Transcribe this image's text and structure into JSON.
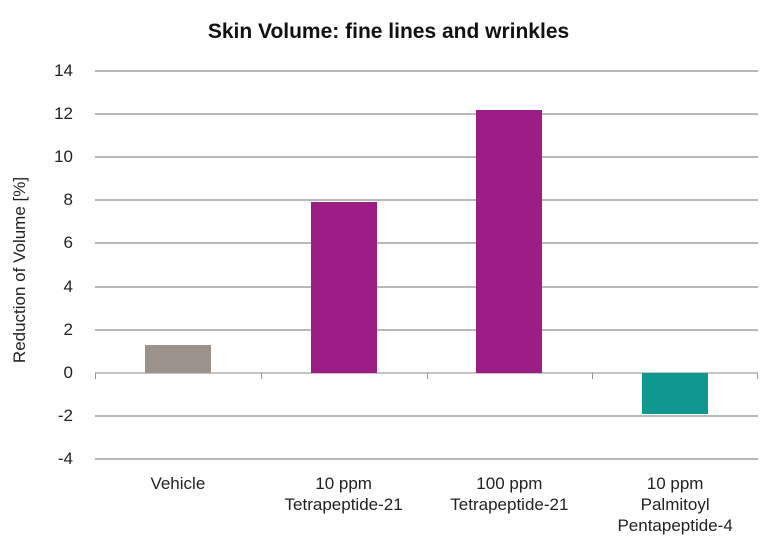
{
  "chart_data": {
    "type": "bar",
    "title": "Skin Volume: fine lines and wrinkles",
    "xlabel": "",
    "ylabel": "Reduction of Volume [%]",
    "ylim": [
      -4,
      14
    ],
    "yticks": [
      14,
      12,
      10,
      8,
      6,
      4,
      2,
      0,
      -2,
      -4
    ],
    "grid": true,
    "legend": null,
    "categories": [
      "Vehicle",
      "10 ppm Tetrapeptide-21",
      "100 ppm Tetrapeptide-21",
      "10 ppm Palmitoyl Pentapeptide-4"
    ],
    "category_lines": [
      [
        "Vehicle"
      ],
      [
        "10 ppm",
        "Tetrapeptide-21"
      ],
      [
        "100 ppm",
        "Tetrapeptide-21"
      ],
      [
        "10 ppm",
        "Palmitoyl",
        "Pentapeptide-4"
      ]
    ],
    "values": [
      1.3,
      7.9,
      12.2,
      -1.9
    ],
    "colors": [
      "#9b918b",
      "#9c1d85",
      "#9c1d85",
      "#0f9890"
    ]
  }
}
